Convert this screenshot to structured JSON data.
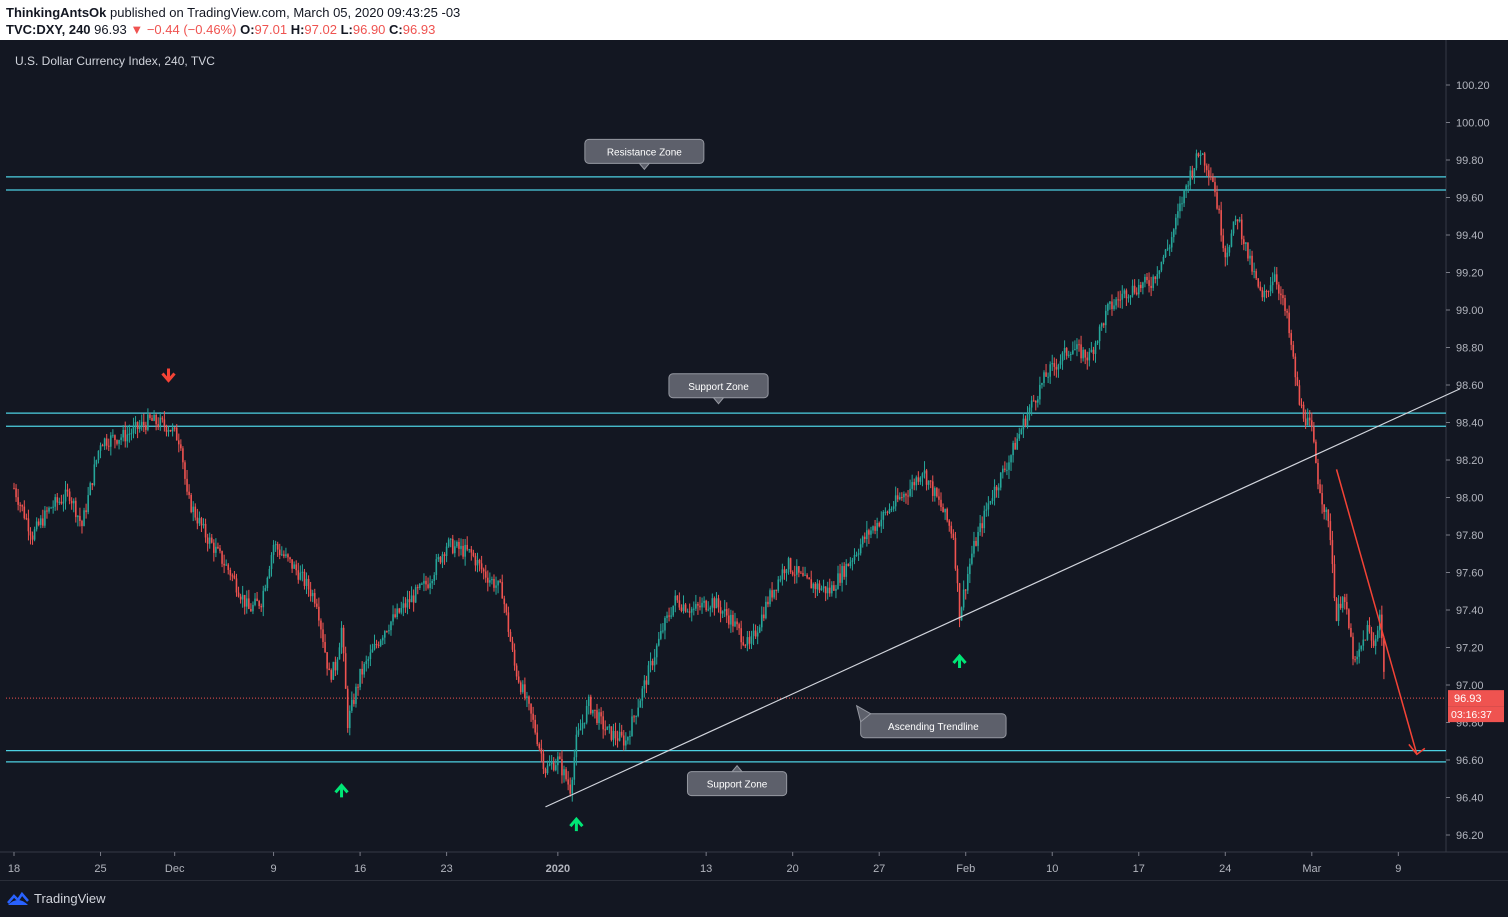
{
  "header": {
    "author": "ThinkingAntsOk",
    "published_text": "published on TradingView.com, March 05, 2020 09:43:25 -03",
    "symbol": "TVC:DXY, 240",
    "last_price": "96.93",
    "change": "▼ −0.44 (−0.46%)",
    "open_label": "O:",
    "open": "97.01",
    "high_label": "H:",
    "high": "97.02",
    "low_label": "L:",
    "low": "96.90",
    "close_label": "C:",
    "close": "96.93"
  },
  "chart_title": "U.S. Dollar Currency Index, 240, TVC",
  "footer": {
    "brand": "TradingView"
  },
  "colors": {
    "background": "#131722",
    "up": "#26a69a",
    "down": "#ef5350",
    "zone_line": "#4dd0e1",
    "trendline": "#d1d4dc",
    "green_arrow": "#00e676",
    "red_arrow": "#f44336"
  },
  "chart_data": {
    "type": "candlestick",
    "ylim": [
      96.0,
      100.3
    ],
    "y_ticks": [
      "100.20",
      "100.00",
      "99.80",
      "99.60",
      "99.40",
      "99.20",
      "99.00",
      "98.80",
      "98.60",
      "98.40",
      "98.20",
      "98.00",
      "97.80",
      "97.60",
      "97.40",
      "97.20",
      "97.00",
      "96.80",
      "96.60",
      "96.40",
      "96.20"
    ],
    "x_ticks": [
      "18",
      "25",
      "Dec",
      "9",
      "16",
      "23",
      "2020",
      "13",
      "20",
      "27",
      "Feb",
      "10",
      "17",
      "24",
      "Mar",
      "9"
    ],
    "x_tick_days": [
      0,
      7,
      13,
      21,
      28,
      35,
      44,
      56,
      63,
      70,
      77,
      84,
      91,
      98,
      105,
      112
    ],
    "x_range_days": [
      0,
      117
    ],
    "last_price_label": "96.93",
    "countdown_label": "03:16:37",
    "last_price": 96.93,
    "zones": [
      {
        "name": "Resistance Zone",
        "low": 99.64,
        "high": 99.71
      },
      {
        "name": "Support Zone",
        "low": 98.38,
        "high": 98.45
      },
      {
        "name": "Support Zone",
        "low": 96.59,
        "high": 96.65
      }
    ],
    "annotations": [
      {
        "text": "Resistance Zone",
        "day": 51,
        "price": 99.75
      },
      {
        "text": "Support Zone",
        "day": 57,
        "price": 98.5
      },
      {
        "text": "Ascending Trendline",
        "day": 68.5,
        "price": 96.9
      },
      {
        "text": "Support Zone",
        "day": 58.5,
        "price": 96.57
      }
    ],
    "trendline": {
      "start": {
        "day": 43,
        "price": 96.35
      },
      "end": {
        "day": 117,
        "price": 98.58
      }
    },
    "projection": {
      "start": {
        "day": 107,
        "price": 98.15
      },
      "end": {
        "day": 113.5,
        "price": 96.63
      }
    },
    "green_arrows": [
      {
        "day": 26.5,
        "price": 96.55
      },
      {
        "day": 45.5,
        "price": 96.37
      },
      {
        "day": 76.5,
        "price": 97.24
      }
    ],
    "red_arrows": [
      {
        "day": 12.5,
        "price": 98.56
      }
    ],
    "price_path": [
      {
        "day": 0,
        "price": 98.05
      },
      {
        "day": 1.5,
        "price": 97.8
      },
      {
        "day": 3,
        "price": 97.95
      },
      {
        "day": 4.5,
        "price": 98.02
      },
      {
        "day": 5.5,
        "price": 97.85
      },
      {
        "day": 7,
        "price": 98.3
      },
      {
        "day": 9,
        "price": 98.33
      },
      {
        "day": 11,
        "price": 98.41
      },
      {
        "day": 12.5,
        "price": 98.38
      },
      {
        "day": 13.5,
        "price": 98.3
      },
      {
        "day": 14,
        "price": 98.0
      },
      {
        "day": 15.5,
        "price": 97.8
      },
      {
        "day": 17.5,
        "price": 97.6
      },
      {
        "day": 19,
        "price": 97.4
      },
      {
        "day": 20,
        "price": 97.45
      },
      {
        "day": 21,
        "price": 97.75
      },
      {
        "day": 23,
        "price": 97.6
      },
      {
        "day": 24.5,
        "price": 97.45
      },
      {
        "day": 25.5,
        "price": 97.05
      },
      {
        "day": 26,
        "price": 97.1
      },
      {
        "day": 26.5,
        "price": 97.3
      },
      {
        "day": 27,
        "price": 96.8
      },
      {
        "day": 28,
        "price": 97.05
      },
      {
        "day": 30,
        "price": 97.3
      },
      {
        "day": 32,
        "price": 97.45
      },
      {
        "day": 33.5,
        "price": 97.55
      },
      {
        "day": 35,
        "price": 97.75
      },
      {
        "day": 37,
        "price": 97.7
      },
      {
        "day": 38,
        "price": 97.6
      },
      {
        "day": 39.5,
        "price": 97.5
      },
      {
        "day": 40.5,
        "price": 97.1
      },
      {
        "day": 42,
        "price": 96.8
      },
      {
        "day": 43,
        "price": 96.55
      },
      {
        "day": 44,
        "price": 96.6
      },
      {
        "day": 45,
        "price": 96.45
      },
      {
        "day": 45.5,
        "price": 96.7
      },
      {
        "day": 46.5,
        "price": 96.9
      },
      {
        "day": 48,
        "price": 96.75
      },
      {
        "day": 49.5,
        "price": 96.7
      },
      {
        "day": 51,
        "price": 97.0
      },
      {
        "day": 52.5,
        "price": 97.3
      },
      {
        "day": 53.5,
        "price": 97.45
      },
      {
        "day": 55,
        "price": 97.4
      },
      {
        "day": 56.5,
        "price": 97.45
      },
      {
        "day": 58,
        "price": 97.35
      },
      {
        "day": 59.5,
        "price": 97.2
      },
      {
        "day": 61,
        "price": 97.45
      },
      {
        "day": 62.5,
        "price": 97.65
      },
      {
        "day": 64,
        "price": 97.55
      },
      {
        "day": 66,
        "price": 97.5
      },
      {
        "day": 67.5,
        "price": 97.65
      },
      {
        "day": 69,
        "price": 97.8
      },
      {
        "day": 71,
        "price": 97.95
      },
      {
        "day": 72.5,
        "price": 98.05
      },
      {
        "day": 73.5,
        "price": 98.15
      },
      {
        "day": 75,
        "price": 97.95
      },
      {
        "day": 76,
        "price": 97.8
      },
      {
        "day": 76.5,
        "price": 97.38
      },
      {
        "day": 77.5,
        "price": 97.7
      },
      {
        "day": 79,
        "price": 98.0
      },
      {
        "day": 80.5,
        "price": 98.2
      },
      {
        "day": 82,
        "price": 98.45
      },
      {
        "day": 83.5,
        "price": 98.65
      },
      {
        "day": 85.5,
        "price": 98.8
      },
      {
        "day": 87,
        "price": 98.75
      },
      {
        "day": 88.5,
        "price": 99.0
      },
      {
        "day": 90,
        "price": 99.1
      },
      {
        "day": 92,
        "price": 99.15
      },
      {
        "day": 93.5,
        "price": 99.35
      },
      {
        "day": 95,
        "price": 99.7
      },
      {
        "day": 96,
        "price": 99.85
      },
      {
        "day": 97,
        "price": 99.7
      },
      {
        "day": 98,
        "price": 99.3
      },
      {
        "day": 99,
        "price": 99.5
      },
      {
        "day": 100,
        "price": 99.25
      },
      {
        "day": 101,
        "price": 99.05
      },
      {
        "day": 102,
        "price": 99.2
      },
      {
        "day": 103,
        "price": 98.95
      },
      {
        "day": 104,
        "price": 98.5
      },
      {
        "day": 105,
        "price": 98.35
      },
      {
        "day": 105.5,
        "price": 98.1
      },
      {
        "day": 106.5,
        "price": 97.8
      },
      {
        "day": 107,
        "price": 97.35
      },
      {
        "day": 107.5,
        "price": 97.5
      },
      {
        "day": 108.5,
        "price": 97.1
      },
      {
        "day": 109.5,
        "price": 97.3
      },
      {
        "day": 110,
        "price": 97.2
      },
      {
        "day": 110.5,
        "price": 97.38
      },
      {
        "day": 111,
        "price": 96.95
      }
    ]
  }
}
